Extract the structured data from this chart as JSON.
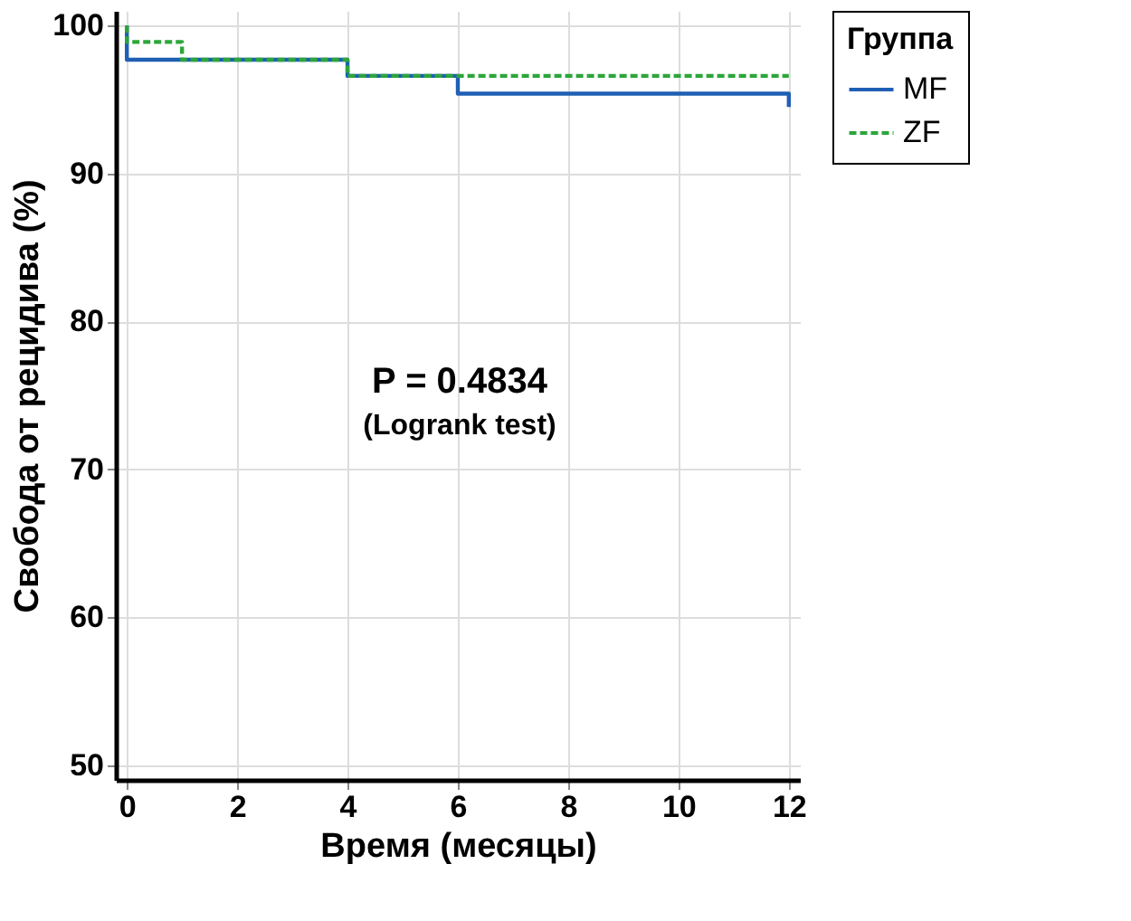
{
  "chart_data": {
    "type": "step",
    "xlabel": "Время (месяцы)",
    "ylabel": "Свобода от рецидива (%)",
    "legend_title": "Группа",
    "xlim": [
      -0.2,
      12.2
    ],
    "xticks": [
      0,
      2,
      4,
      6,
      8,
      10,
      12
    ],
    "ylim": [
      49,
      101
    ],
    "yticks": [
      50,
      60,
      70,
      80,
      90,
      100
    ],
    "grid": true,
    "legend": "right",
    "series": [
      {
        "name": "MF",
        "color": "#1f5fb4",
        "line_style": "solid",
        "x": [
          0,
          0,
          4,
          6,
          12
        ],
        "values": [
          100,
          97.7,
          96.6,
          95.4,
          94.5
        ]
      },
      {
        "name": "ZF",
        "color": "#2ca63a",
        "line_style": "dashed",
        "x": [
          0,
          0,
          1,
          4,
          12
        ],
        "values": [
          100,
          98.9,
          97.7,
          96.6,
          96.6
        ]
      }
    ],
    "annotations": [
      "P = 0.4834",
      "(Logrank test)"
    ]
  }
}
